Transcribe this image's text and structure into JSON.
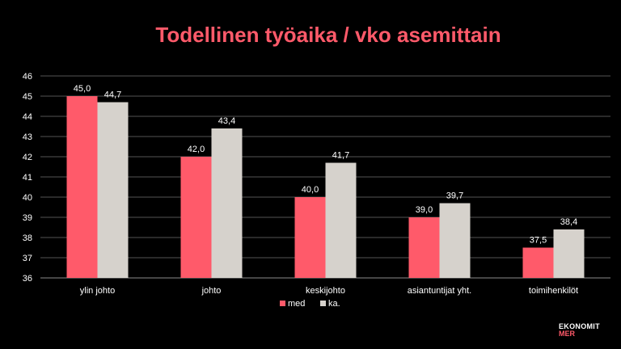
{
  "title": "Todellinen työaika / vko asemittain",
  "logo": {
    "line1": "EKONOMIT",
    "line2": "MER"
  },
  "colors": {
    "background": "#000000",
    "title": "#ff5a6a",
    "med": "#ff5a6a",
    "ka": "#d6d2cc",
    "grid": "#555555"
  },
  "chart_data": {
    "type": "bar",
    "title": "Todellinen työaika / vko asemittain",
    "xlabel": "",
    "ylabel": "",
    "ylim": [
      36,
      46
    ],
    "yticks": [
      "36",
      "37",
      "38",
      "39",
      "40",
      "41",
      "42",
      "43",
      "44",
      "45",
      "46"
    ],
    "categories": [
      "ylin johto",
      "johto",
      "keskijohto",
      "asiantuntijat yht.",
      "toimihenkilöt"
    ],
    "series": [
      {
        "name": "med",
        "values": [
          45.0,
          42.0,
          40.0,
          39.0,
          37.5
        ],
        "labels": [
          "45,0",
          "42,0",
          "40,0",
          "39,0",
          "37,5"
        ]
      },
      {
        "name": "ka.",
        "values": [
          44.7,
          43.4,
          41.7,
          39.7,
          38.4
        ],
        "labels": [
          "44,7",
          "43,4",
          "41,7",
          "39,7",
          "38,4"
        ]
      }
    ],
    "grid": true,
    "legend_position": "bottom"
  }
}
